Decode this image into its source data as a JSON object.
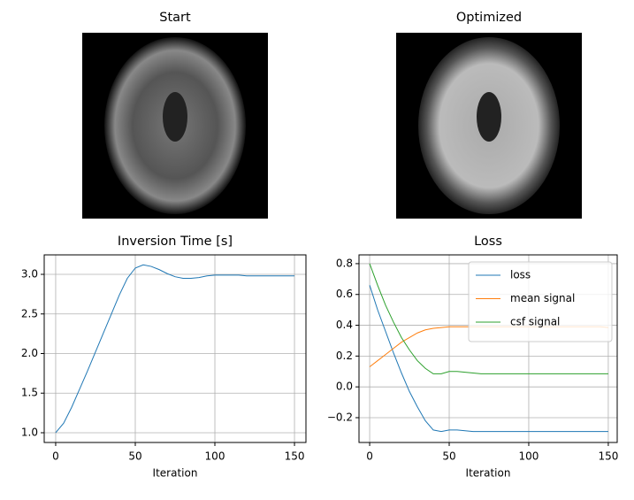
{
  "chart_data": [
    {
      "type": "image",
      "title": "Start"
    },
    {
      "type": "image",
      "title": "Optimized"
    },
    {
      "type": "line",
      "title": "Inversion Time [s]",
      "xlabel": "Iteration",
      "xlim": [
        -7.2,
        157.2
      ],
      "ylim": [
        0.877,
        3.246
      ],
      "xticks": [
        0,
        50,
        100,
        150
      ],
      "yticks": [
        {
          "value": 1.0,
          "label": "1.0"
        },
        {
          "value": 1.5,
          "label": "1.5"
        },
        {
          "value": 2.0,
          "label": "2.0"
        },
        {
          "value": 2.5,
          "label": "2.5"
        },
        {
          "value": 3.0,
          "label": "3.0"
        }
      ],
      "grid": true,
      "x": [
        0,
        5,
        10,
        15,
        20,
        25,
        30,
        35,
        40,
        45,
        50,
        55,
        60,
        65,
        70,
        75,
        80,
        85,
        90,
        95,
        100,
        105,
        110,
        115,
        120,
        125,
        130,
        135,
        140,
        145,
        150
      ],
      "series": [
        {
          "color": "#1f77b4",
          "values": [
            1.0,
            1.12,
            1.32,
            1.55,
            1.78,
            2.02,
            2.26,
            2.5,
            2.74,
            2.95,
            3.08,
            3.12,
            3.1,
            3.06,
            3.01,
            2.97,
            2.95,
            2.95,
            2.96,
            2.98,
            2.99,
            2.99,
            2.99,
            2.99,
            2.98,
            2.98,
            2.98,
            2.98,
            2.98,
            2.98,
            2.98
          ]
        }
      ]
    },
    {
      "type": "line",
      "title": "Loss",
      "xlabel": "Iteration",
      "xlim": [
        -6.7,
        155.6
      ],
      "ylim": [
        -0.361,
        0.857
      ],
      "xticks": [
        0,
        50,
        100,
        150
      ],
      "yticks": [
        {
          "value": -0.2,
          "label": "−0.2"
        },
        {
          "value": 0.0,
          "label": "0.0"
        },
        {
          "value": 0.2,
          "label": "0.2"
        },
        {
          "value": 0.4,
          "label": "0.4"
        },
        {
          "value": 0.6,
          "label": "0.6"
        },
        {
          "value": 0.8,
          "label": "0.8"
        }
      ],
      "grid": true,
      "legend": "upper right",
      "x": [
        0,
        5,
        10,
        15,
        20,
        25,
        30,
        35,
        40,
        45,
        50,
        55,
        60,
        65,
        70,
        75,
        80,
        85,
        90,
        95,
        100,
        105,
        110,
        115,
        120,
        125,
        130,
        135,
        140,
        145,
        150
      ],
      "series": [
        {
          "name": "loss",
          "color": "#1f77b4",
          "values": [
            0.66,
            0.5,
            0.36,
            0.22,
            0.09,
            -0.03,
            -0.13,
            -0.22,
            -0.28,
            -0.29,
            -0.28,
            -0.28,
            -0.285,
            -0.29,
            -0.29,
            -0.29,
            -0.29,
            -0.29,
            -0.29,
            -0.29,
            -0.29,
            -0.29,
            -0.29,
            -0.29,
            -0.29,
            -0.29,
            -0.29,
            -0.29,
            -0.29,
            -0.29,
            -0.29
          ]
        },
        {
          "name": "mean signal",
          "color": "#ff7f0e",
          "values": [
            0.13,
            0.17,
            0.21,
            0.25,
            0.29,
            0.32,
            0.35,
            0.37,
            0.38,
            0.385,
            0.39,
            0.39,
            0.39,
            0.39,
            0.39,
            0.39,
            0.39,
            0.39,
            0.39,
            0.39,
            0.39,
            0.39,
            0.39,
            0.39,
            0.39,
            0.39,
            0.39,
            0.39,
            0.39,
            0.39,
            0.385
          ]
        },
        {
          "name": "csf signal",
          "color": "#2ca02c",
          "values": [
            0.8,
            0.66,
            0.53,
            0.42,
            0.32,
            0.24,
            0.17,
            0.12,
            0.085,
            0.085,
            0.1,
            0.1,
            0.095,
            0.09,
            0.085,
            0.085,
            0.085,
            0.085,
            0.085,
            0.085,
            0.085,
            0.085,
            0.085,
            0.085,
            0.085,
            0.085,
            0.085,
            0.085,
            0.085,
            0.085,
            0.085
          ]
        }
      ]
    }
  ]
}
